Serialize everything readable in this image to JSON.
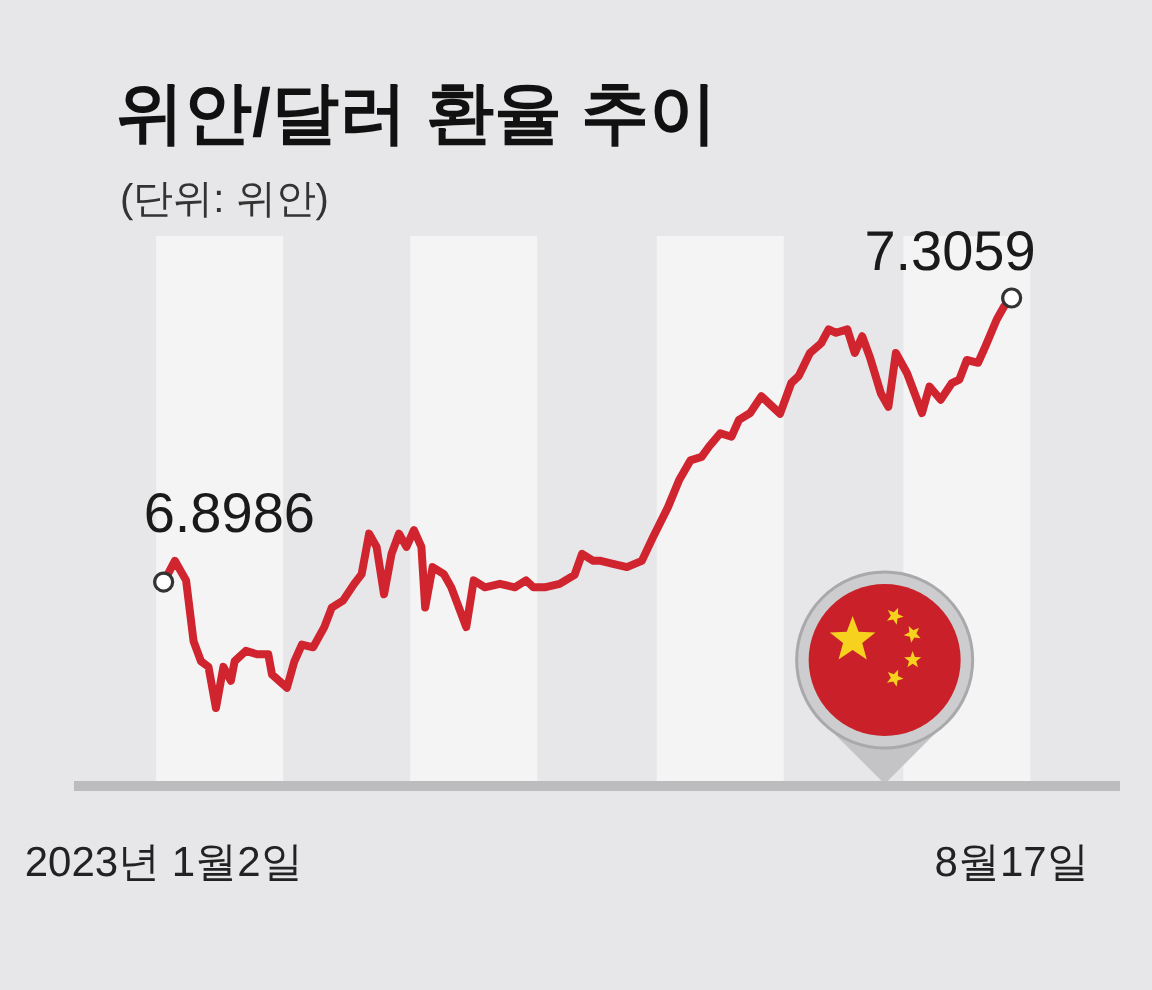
{
  "chart_data": {
    "type": "line",
    "title": "위안/달러 환율 추이",
    "subtitle": "(단위: 위안)",
    "x": [
      "2023-01-02",
      "2023-01-05",
      "2023-01-08",
      "2023-01-10",
      "2023-01-12",
      "2023-01-14",
      "2023-01-16",
      "2023-01-18",
      "2023-01-20",
      "2023-01-21",
      "2023-01-24",
      "2023-01-27",
      "2023-01-30",
      "2023-01-31",
      "2023-02-04",
      "2023-02-06",
      "2023-02-08",
      "2023-02-11",
      "2023-02-14",
      "2023-02-16",
      "2023-02-19",
      "2023-02-22",
      "2023-02-24",
      "2023-02-26",
      "2023-02-28",
      "2023-03-02",
      "2023-03-04",
      "2023-03-06",
      "2023-03-08",
      "2023-03-10",
      "2023-03-12",
      "2023-03-13",
      "2023-03-15",
      "2023-03-18",
      "2023-03-20",
      "2023-03-24",
      "2023-03-26",
      "2023-03-29",
      "2023-04-02",
      "2023-04-06",
      "2023-04-09",
      "2023-04-11",
      "2023-04-14",
      "2023-04-18",
      "2023-04-22",
      "2023-04-24",
      "2023-04-27",
      "2023-04-29",
      "2023-05-02",
      "2023-05-06",
      "2023-05-10",
      "2023-05-13",
      "2023-05-17",
      "2023-05-20",
      "2023-05-23",
      "2023-05-26",
      "2023-05-28",
      "2023-05-31",
      "2023-06-03",
      "2023-06-05",
      "2023-06-08",
      "2023-06-11",
      "2023-06-13",
      "2023-06-16",
      "2023-06-19",
      "2023-06-21",
      "2023-06-24",
      "2023-06-27",
      "2023-06-29",
      "2023-07-01",
      "2023-07-04",
      "2023-07-06",
      "2023-07-08",
      "2023-07-10",
      "2023-07-13",
      "2023-07-15",
      "2023-07-17",
      "2023-07-20",
      "2023-07-24",
      "2023-07-26",
      "2023-07-29",
      "2023-08-01",
      "2023-08-03",
      "2023-08-05",
      "2023-08-08",
      "2023-08-10",
      "2023-08-13",
      "2023-08-15",
      "2023-08-17"
    ],
    "values": [
      6.8986,
      6.929,
      6.901,
      6.814,
      6.785,
      6.777,
      6.718,
      6.777,
      6.757,
      6.785,
      6.8,
      6.795,
      6.795,
      6.766,
      6.747,
      6.785,
      6.809,
      6.805,
      6.834,
      6.862,
      6.872,
      6.896,
      6.91,
      6.968,
      6.949,
      6.881,
      6.939,
      6.968,
      6.949,
      6.973,
      6.949,
      6.862,
      6.92,
      6.91,
      6.891,
      6.834,
      6.901,
      6.891,
      6.896,
      6.891,
      6.901,
      6.891,
      6.891,
      6.896,
      6.909,
      6.939,
      6.929,
      6.929,
      6.925,
      6.92,
      6.929,
      6.963,
      7.006,
      7.045,
      7.073,
      7.078,
      7.093,
      7.112,
      7.107,
      7.131,
      7.141,
      7.165,
      7.155,
      7.14,
      7.184,
      7.194,
      7.227,
      7.241,
      7.261,
      7.256,
      7.261,
      7.227,
      7.251,
      7.222,
      7.169,
      7.15,
      7.227,
      7.198,
      7.141,
      7.179,
      7.16,
      7.184,
      7.189,
      7.217,
      7.213,
      7.237,
      7.275,
      7.294,
      7.3059
    ],
    "value_labels": [
      "6.8986",
      null,
      null,
      null,
      null,
      null,
      null,
      null,
      null,
      null,
      null,
      null,
      null,
      null,
      null,
      null,
      null,
      null,
      null,
      null,
      null,
      null,
      null,
      null,
      null,
      null,
      null,
      null,
      null,
      null,
      null,
      null,
      null,
      null,
      null,
      null,
      null,
      null,
      null,
      null,
      null,
      null,
      null,
      null,
      null,
      null,
      null,
      null,
      null,
      null,
      null,
      null,
      null,
      null,
      null,
      null,
      null,
      null,
      null,
      null,
      null,
      null,
      null,
      null,
      null,
      null,
      null,
      null,
      null,
      null,
      null,
      null,
      null,
      null,
      null,
      null,
      null,
      null,
      null,
      null,
      null,
      null,
      null,
      null,
      null,
      null,
      null,
      null,
      "7.3059"
    ],
    "color": "#d0252f",
    "xlim": [
      "2022-12-09",
      "2023-09-15"
    ],
    "xticks": [
      {
        "value": "2023-01-02",
        "label": "2023년 1월2일"
      },
      {
        "value": "2023-08-17",
        "label": "8월17일"
      }
    ],
    "tick_labels": "x",
    "bands": [
      {
        "axis": "x",
        "from": "2022-12-31",
        "to": "2023-02-03",
        "color": "#f4f4f5"
      },
      {
        "axis": "x",
        "from": "2023-03-09",
        "to": "2023-04-12",
        "color": "#f4f4f5"
      },
      {
        "axis": "x",
        "from": "2023-05-14",
        "to": "2023-06-17",
        "color": "#f4f4f5"
      },
      {
        "axis": "x",
        "from": "2023-07-19",
        "to": "2023-08-22",
        "color": "#f4f4f5"
      }
    ]
  }
}
